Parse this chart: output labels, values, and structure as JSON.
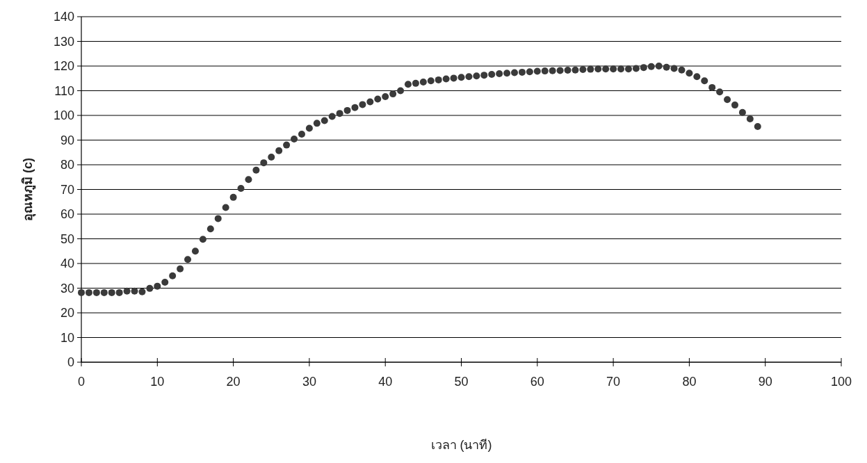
{
  "chart_data": {
    "type": "scatter",
    "xlabel": "เวลา (นาที)",
    "ylabel": "อุณหภูมิ (c)",
    "marker": "circle",
    "grid": "y",
    "xlim": [
      0,
      100
    ],
    "xticks": [
      0,
      10,
      20,
      30,
      40,
      50,
      60,
      70,
      80,
      90,
      100
    ],
    "ylim": [
      0,
      140
    ],
    "yticks": [
      0,
      10,
      20,
      30,
      40,
      50,
      60,
      70,
      80,
      90,
      100,
      110,
      120,
      130,
      140
    ],
    "x": [
      0,
      1,
      2,
      3,
      4,
      5,
      6,
      7,
      8,
      9,
      10,
      11,
      12,
      13,
      14,
      15,
      16,
      17,
      18,
      19,
      20,
      21,
      22,
      23,
      24,
      25,
      26,
      27,
      28,
      29,
      30,
      31,
      32,
      33,
      34,
      35,
      36,
      37,
      38,
      39,
      40,
      41,
      42,
      43,
      44,
      45,
      46,
      47,
      48,
      49,
      50,
      51,
      52,
      53,
      54,
      55,
      56,
      57,
      58,
      59,
      60,
      61,
      62,
      63,
      64,
      65,
      66,
      67,
      68,
      69,
      70,
      71,
      72,
      73,
      74,
      75,
      76,
      77,
      78,
      79,
      80,
      81,
      82,
      83,
      84,
      85,
      86,
      87,
      88,
      89
    ],
    "series": [
      {
        "color": "#3a3a3a",
        "values": [
          28.2,
          28.2,
          28.2,
          28.2,
          28.2,
          28.2,
          28.8,
          28.8,
          28.5,
          29.9,
          30.8,
          32.4,
          35,
          37.8,
          41.6,
          45,
          49.8,
          54,
          58.2,
          62.7,
          66.8,
          70.4,
          74,
          77.8,
          80.8,
          83.1,
          85.7,
          88,
          90.4,
          92.4,
          94.8,
          96.8,
          97.9,
          99.6,
          100.8,
          102,
          103.2,
          104.4,
          105.5,
          106.6,
          107.6,
          108.7,
          110,
          112.6,
          113,
          113.5,
          114,
          114.4,
          114.8,
          115.1,
          115.4,
          115.7,
          116,
          116.3,
          116.6,
          116.9,
          117.1,
          117.3,
          117.5,
          117.7,
          117.9,
          118,
          118.1,
          118.2,
          118.3,
          118.4,
          118.6,
          118.7,
          118.8,
          118.8,
          118.8,
          118.8,
          118.8,
          119,
          119.4,
          119.8,
          120,
          119.5,
          119,
          118.4,
          117.1,
          115.7,
          114,
          111.3,
          109.5,
          106.4,
          104.2,
          101.2,
          98.6,
          95.5
        ]
      }
    ]
  }
}
